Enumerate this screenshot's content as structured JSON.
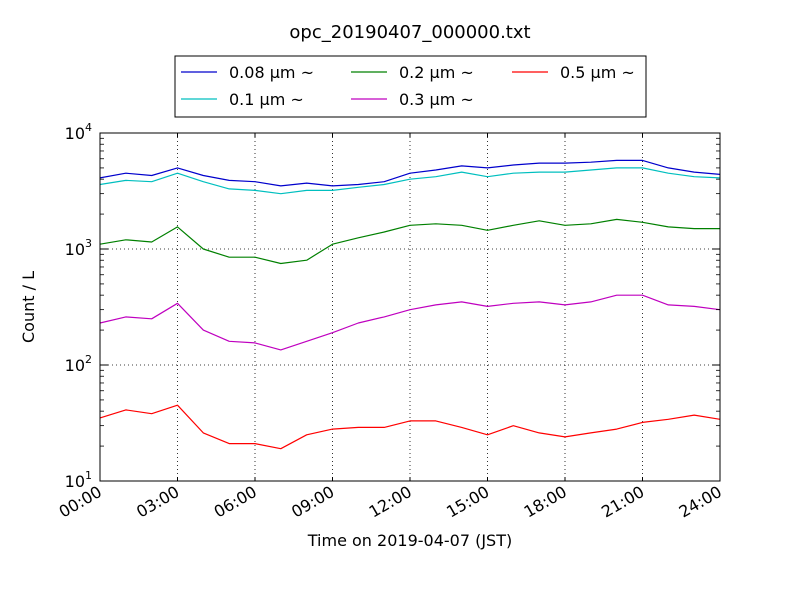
{
  "chart_data": {
    "type": "line",
    "title": "opc_20190407_000000.txt",
    "xlabel": "Time on 2019-04-07 (JST)",
    "ylabel": "Count / L",
    "y_scale": "log",
    "ylim": [
      10,
      10000
    ],
    "xlim_hours": [
      0,
      24
    ],
    "x_tick_labels": [
      "00:00",
      "03:00",
      "06:00",
      "09:00",
      "12:00",
      "15:00",
      "18:00",
      "21:00",
      "24:00"
    ],
    "y_tick_labels": [
      {
        "base": "10",
        "exp": "1"
      },
      {
        "base": "10",
        "exp": "2"
      },
      {
        "base": "10",
        "exp": "3"
      },
      {
        "base": "10",
        "exp": "4"
      }
    ],
    "grid": true,
    "legend_position": "top-center",
    "x_hours": [
      0,
      1,
      2,
      3,
      4,
      5,
      6,
      7,
      8,
      9,
      10,
      11,
      12,
      13,
      14,
      15,
      16,
      17,
      18,
      19,
      20,
      21,
      22,
      23,
      24
    ],
    "series": [
      {
        "name": "0.08 μm ~",
        "color": "#0000cc",
        "values": [
          4100,
          4500,
          4300,
          5000,
          4300,
          3900,
          3800,
          3500,
          3700,
          3500,
          3600,
          3800,
          4500,
          4800,
          5200,
          5000,
          5300,
          5500,
          5500,
          5600,
          5800,
          5800,
          5000,
          4600,
          4400
        ]
      },
      {
        "name": "0.1 μm ~",
        "color": "#00bfbf",
        "values": [
          3600,
          3900,
          3800,
          4500,
          3800,
          3300,
          3200,
          3000,
          3200,
          3200,
          3400,
          3600,
          4000,
          4200,
          4600,
          4200,
          4500,
          4600,
          4600,
          4800,
          5000,
          5000,
          4500,
          4200,
          4100
        ]
      },
      {
        "name": "0.2 μm ~",
        "color": "#008000",
        "values": [
          1100,
          1200,
          1150,
          1550,
          1000,
          850,
          850,
          750,
          800,
          1100,
          1250,
          1400,
          1600,
          1650,
          1600,
          1450,
          1600,
          1750,
          1600,
          1650,
          1800,
          1700,
          1550,
          1500,
          1500
        ]
      },
      {
        "name": "0.3 μm ~",
        "color": "#bf00bf",
        "values": [
          230,
          260,
          250,
          340,
          200,
          160,
          155,
          135,
          160,
          190,
          230,
          260,
          300,
          330,
          350,
          320,
          340,
          350,
          330,
          350,
          400,
          400,
          330,
          320,
          300
        ]
      },
      {
        "name": "0.5 μm ~",
        "color": "#ff0000",
        "values": [
          35,
          41,
          38,
          45,
          26,
          21,
          21,
          19,
          25,
          28,
          29,
          29,
          33,
          33,
          29,
          25,
          30,
          26,
          24,
          26,
          28,
          32,
          34,
          37,
          34
        ]
      }
    ]
  }
}
